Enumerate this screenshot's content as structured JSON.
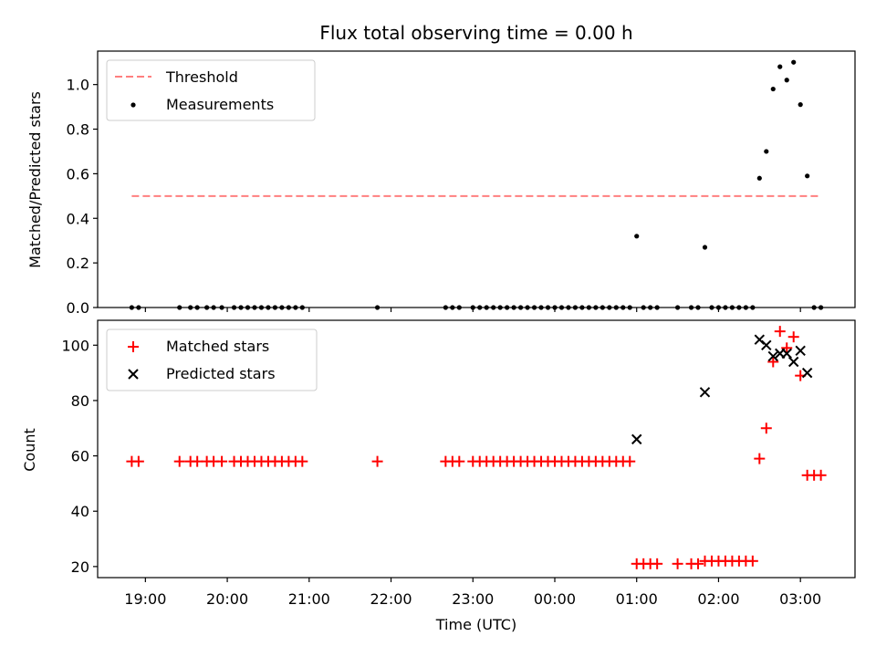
{
  "chart_data": [
    {
      "type": "scatter",
      "title": "Flux total observing time = 0.00 h",
      "xlabel": "",
      "ylabel": "Matched/Predicted stars",
      "ylim": [
        0,
        1.15
      ],
      "yticks": [
        "0.0",
        "0.2",
        "0.4",
        "0.6",
        "0.8",
        "1.0"
      ],
      "ytick_values": [
        0,
        0.2,
        0.4,
        0.6,
        0.8,
        1.0
      ],
      "legend_position": "upper-left",
      "threshold": {
        "name": "Threshold",
        "value": 0.5,
        "x_range": [
          "18:50",
          "03:15"
        ],
        "color": "#ff7f7f",
        "style": "dashed"
      },
      "series": [
        {
          "name": "Measurements",
          "marker": "dot",
          "color": "#000000",
          "points": [
            [
              "18:50",
              0
            ],
            [
              "18:55",
              0
            ],
            [
              "19:25",
              0
            ],
            [
              "19:33",
              0
            ],
            [
              "19:38",
              0
            ],
            [
              "19:45",
              0
            ],
            [
              "19:50",
              0
            ],
            [
              "19:56",
              0
            ],
            [
              "20:05",
              0
            ],
            [
              "20:10",
              0
            ],
            [
              "20:15",
              0
            ],
            [
              "20:20",
              0
            ],
            [
              "20:25",
              0
            ],
            [
              "20:30",
              0
            ],
            [
              "20:35",
              0
            ],
            [
              "20:40",
              0
            ],
            [
              "20:45",
              0
            ],
            [
              "20:50",
              0
            ],
            [
              "20:55",
              0
            ],
            [
              "21:50",
              0
            ],
            [
              "22:40",
              0
            ],
            [
              "22:45",
              0
            ],
            [
              "22:50",
              0
            ],
            [
              "23:00",
              0
            ],
            [
              "23:05",
              0
            ],
            [
              "23:10",
              0
            ],
            [
              "23:15",
              0
            ],
            [
              "23:20",
              0
            ],
            [
              "23:25",
              0
            ],
            [
              "23:30",
              0
            ],
            [
              "23:35",
              0
            ],
            [
              "23:40",
              0
            ],
            [
              "23:45",
              0
            ],
            [
              "23:50",
              0
            ],
            [
              "23:55",
              0
            ],
            [
              "00:00",
              0
            ],
            [
              "00:05",
              0
            ],
            [
              "00:10",
              0
            ],
            [
              "00:15",
              0
            ],
            [
              "00:20",
              0
            ],
            [
              "00:25",
              0
            ],
            [
              "00:30",
              0
            ],
            [
              "00:35",
              0
            ],
            [
              "00:40",
              0
            ],
            [
              "00:45",
              0
            ],
            [
              "00:50",
              0
            ],
            [
              "00:55",
              0
            ],
            [
              "01:00",
              0.32
            ],
            [
              "01:05",
              0
            ],
            [
              "01:10",
              0
            ],
            [
              "01:15",
              0
            ],
            [
              "01:30",
              0
            ],
            [
              "01:40",
              0
            ],
            [
              "01:45",
              0
            ],
            [
              "01:50",
              0.27
            ],
            [
              "01:55",
              0
            ],
            [
              "02:00",
              0
            ],
            [
              "02:05",
              0
            ],
            [
              "02:10",
              0
            ],
            [
              "02:15",
              0
            ],
            [
              "02:20",
              0
            ],
            [
              "02:25",
              0
            ],
            [
              "02:30",
              0.58
            ],
            [
              "02:35",
              0.7
            ],
            [
              "02:40",
              0.98
            ],
            [
              "02:45",
              1.08
            ],
            [
              "02:50",
              1.02
            ],
            [
              "02:55",
              1.1
            ],
            [
              "03:00",
              0.91
            ],
            [
              "03:05",
              0.59
            ],
            [
              "03:10",
              0
            ],
            [
              "03:15",
              0
            ]
          ]
        }
      ]
    },
    {
      "type": "scatter",
      "title": "",
      "xlabel": "Time (UTC)",
      "ylabel": "Count",
      "ylim": [
        16,
        109
      ],
      "yticks": [
        "20",
        "40",
        "60",
        "80",
        "100"
      ],
      "ytick_values": [
        20,
        40,
        60,
        80,
        100
      ],
      "x_range": [
        "18:25",
        "03:40"
      ],
      "xticks": [
        "19:00",
        "20:00",
        "21:00",
        "22:00",
        "23:00",
        "00:00",
        "01:00",
        "02:00",
        "03:00"
      ],
      "legend_position": "upper-left",
      "series": [
        {
          "name": "Matched stars",
          "marker": "plus",
          "color": "#ff0000",
          "points": [
            [
              "18:50",
              58
            ],
            [
              "18:55",
              58
            ],
            [
              "19:25",
              58
            ],
            [
              "19:33",
              58
            ],
            [
              "19:38",
              58
            ],
            [
              "19:45",
              58
            ],
            [
              "19:50",
              58
            ],
            [
              "19:56",
              58
            ],
            [
              "20:05",
              58
            ],
            [
              "20:10",
              58
            ],
            [
              "20:15",
              58
            ],
            [
              "20:20",
              58
            ],
            [
              "20:25",
              58
            ],
            [
              "20:30",
              58
            ],
            [
              "20:35",
              58
            ],
            [
              "20:40",
              58
            ],
            [
              "20:45",
              58
            ],
            [
              "20:50",
              58
            ],
            [
              "20:55",
              58
            ],
            [
              "21:50",
              58
            ],
            [
              "22:40",
              58
            ],
            [
              "22:45",
              58
            ],
            [
              "22:50",
              58
            ],
            [
              "23:00",
              58
            ],
            [
              "23:05",
              58
            ],
            [
              "23:10",
              58
            ],
            [
              "23:15",
              58
            ],
            [
              "23:20",
              58
            ],
            [
              "23:25",
              58
            ],
            [
              "23:30",
              58
            ],
            [
              "23:35",
              58
            ],
            [
              "23:40",
              58
            ],
            [
              "23:45",
              58
            ],
            [
              "23:50",
              58
            ],
            [
              "23:55",
              58
            ],
            [
              "00:00",
              58
            ],
            [
              "00:05",
              58
            ],
            [
              "00:10",
              58
            ],
            [
              "00:15",
              58
            ],
            [
              "00:20",
              58
            ],
            [
              "00:25",
              58
            ],
            [
              "00:30",
              58
            ],
            [
              "00:35",
              58
            ],
            [
              "00:40",
              58
            ],
            [
              "00:45",
              58
            ],
            [
              "00:50",
              58
            ],
            [
              "00:55",
              58
            ],
            [
              "01:00",
              21
            ],
            [
              "01:05",
              21
            ],
            [
              "01:10",
              21
            ],
            [
              "01:15",
              21
            ],
            [
              "01:30",
              21
            ],
            [
              "01:40",
              21
            ],
            [
              "01:45",
              21
            ],
            [
              "01:50",
              22
            ],
            [
              "01:55",
              22
            ],
            [
              "02:00",
              22
            ],
            [
              "02:05",
              22
            ],
            [
              "02:10",
              22
            ],
            [
              "02:15",
              22
            ],
            [
              "02:20",
              22
            ],
            [
              "02:25",
              22
            ],
            [
              "02:30",
              59
            ],
            [
              "02:35",
              70
            ],
            [
              "02:40",
              94
            ],
            [
              "02:45",
              105
            ],
            [
              "02:50",
              99
            ],
            [
              "02:55",
              103
            ],
            [
              "03:00",
              89
            ],
            [
              "03:05",
              53
            ],
            [
              "03:10",
              53
            ],
            [
              "03:15",
              53
            ]
          ]
        },
        {
          "name": "Predicted stars",
          "marker": "x",
          "color": "#000000",
          "points": [
            [
              "01:00",
              66
            ],
            [
              "01:50",
              83
            ],
            [
              "02:30",
              102
            ],
            [
              "02:35",
              100
            ],
            [
              "02:40",
              96
            ],
            [
              "02:45",
              97
            ],
            [
              "02:50",
              97
            ],
            [
              "02:55",
              94
            ],
            [
              "03:00",
              98
            ],
            [
              "03:05",
              90
            ]
          ]
        }
      ]
    }
  ]
}
